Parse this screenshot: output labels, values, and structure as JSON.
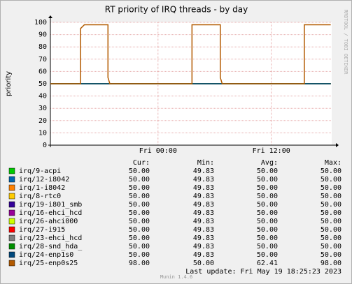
{
  "chart_data": {
    "type": "line",
    "title": "RT priority of IRQ threads - by day",
    "y_label": "priority",
    "side_text": "RRDTOOL / TOBI OETIKER",
    "x": [
      -11.4,
      -8.2,
      -8.2,
      -7.8,
      -5.3,
      -5.3,
      -5.1,
      3.6,
      3.6,
      6.6,
      6.6,
      6.8,
      15.5,
      15.5,
      18.3
    ],
    "xlim": [
      -11.4,
      18.4
    ],
    "xticks": [
      {
        "value": 0,
        "label": "Fri 00:00"
      },
      {
        "value": 12,
        "label": "Fri 12:00"
      }
    ],
    "ylim": [
      0,
      100
    ],
    "yticks": [
      0,
      10,
      20,
      30,
      40,
      50,
      60,
      70,
      80,
      90,
      100
    ],
    "grid": true,
    "legend_columns": [
      "Cur:",
      "Min:",
      "Avg:",
      "Max:"
    ],
    "series": [
      {
        "name": "irq/9-acpi",
        "color": "#00cc00",
        "values": [
          50,
          50,
          50,
          50,
          50,
          50,
          50,
          50,
          50,
          50,
          50,
          50,
          50,
          50,
          50
        ],
        "stats": [
          "50.00",
          "49.83",
          "50.00",
          "50.00"
        ]
      },
      {
        "name": "irq/12-i8042",
        "color": "#0066b3",
        "values": [
          50,
          50,
          50,
          50,
          50,
          50,
          50,
          50,
          50,
          50,
          50,
          50,
          50,
          50,
          50
        ],
        "stats": [
          "50.00",
          "49.83",
          "50.00",
          "50.00"
        ]
      },
      {
        "name": "irq/1-i8042",
        "color": "#ff8000",
        "values": [
          50,
          50,
          50,
          50,
          50,
          50,
          50,
          50,
          50,
          50,
          50,
          50,
          50,
          50,
          50
        ],
        "stats": [
          "50.00",
          "49.83",
          "50.00",
          "50.00"
        ]
      },
      {
        "name": "irq/8-rtc0",
        "color": "#ffcc00",
        "values": [
          50,
          50,
          50,
          50,
          50,
          50,
          50,
          50,
          50,
          50,
          50,
          50,
          50,
          50,
          50
        ],
        "stats": [
          "50.00",
          "49.83",
          "50.00",
          "50.00"
        ]
      },
      {
        "name": "irq/19-i801_smb",
        "color": "#330099",
        "values": [
          50,
          50,
          50,
          50,
          50,
          50,
          50,
          50,
          50,
          50,
          50,
          50,
          50,
          50,
          50
        ],
        "stats": [
          "50.00",
          "49.83",
          "50.00",
          "50.00"
        ]
      },
      {
        "name": "irq/16-ehci_hcd",
        "color": "#990099",
        "values": [
          50,
          50,
          50,
          50,
          50,
          50,
          50,
          50,
          50,
          50,
          50,
          50,
          50,
          50,
          50
        ],
        "stats": [
          "50.00",
          "49.83",
          "50.00",
          "50.00"
        ]
      },
      {
        "name": "irq/26-ahci000",
        "color": "#ccff00",
        "values": [
          50,
          50,
          50,
          50,
          50,
          50,
          50,
          50,
          50,
          50,
          50,
          50,
          50,
          50,
          50
        ],
        "stats": [
          "50.00",
          "49.83",
          "50.00",
          "50.00"
        ]
      },
      {
        "name": "irq/27-i915",
        "color": "#ff0000",
        "values": [
          50,
          50,
          50,
          50,
          50,
          50,
          50,
          50,
          50,
          50,
          50,
          50,
          50,
          50,
          50
        ],
        "stats": [
          "50.00",
          "49.83",
          "50.00",
          "50.00"
        ]
      },
      {
        "name": "irq/23-ehci_hcd",
        "color": "#808080",
        "values": [
          50,
          50,
          50,
          50,
          50,
          50,
          50,
          50,
          50,
          50,
          50,
          50,
          50,
          50,
          50
        ],
        "stats": [
          "50.00",
          "49.83",
          "50.00",
          "50.00"
        ]
      },
      {
        "name": "irq/28-snd_hda_",
        "color": "#008f00",
        "values": [
          50,
          50,
          50,
          50,
          50,
          50,
          50,
          50,
          50,
          50,
          50,
          50,
          50,
          50,
          50
        ],
        "stats": [
          "50.00",
          "49.83",
          "50.00",
          "50.00"
        ]
      },
      {
        "name": "irq/24-enp1s0",
        "color": "#00487d",
        "values": [
          50,
          50,
          50,
          50,
          50,
          50,
          50,
          50,
          50,
          50,
          50,
          50,
          50,
          50,
          50
        ],
        "stats": [
          "50.00",
          "49.83",
          "50.00",
          "50.00"
        ]
      },
      {
        "name": "irq/25-enp0s25",
        "color": "#b35a00",
        "values": [
          50,
          50,
          95,
          98,
          98,
          55,
          50,
          50,
          98,
          98,
          55,
          50,
          50,
          98,
          98
        ],
        "stats": [
          "98.00",
          "50.00",
          "62.41",
          "98.00"
        ]
      }
    ],
    "last_update": "Last update: Fri May 19 18:25:23 2023",
    "version": "Munin 1.4.6"
  }
}
